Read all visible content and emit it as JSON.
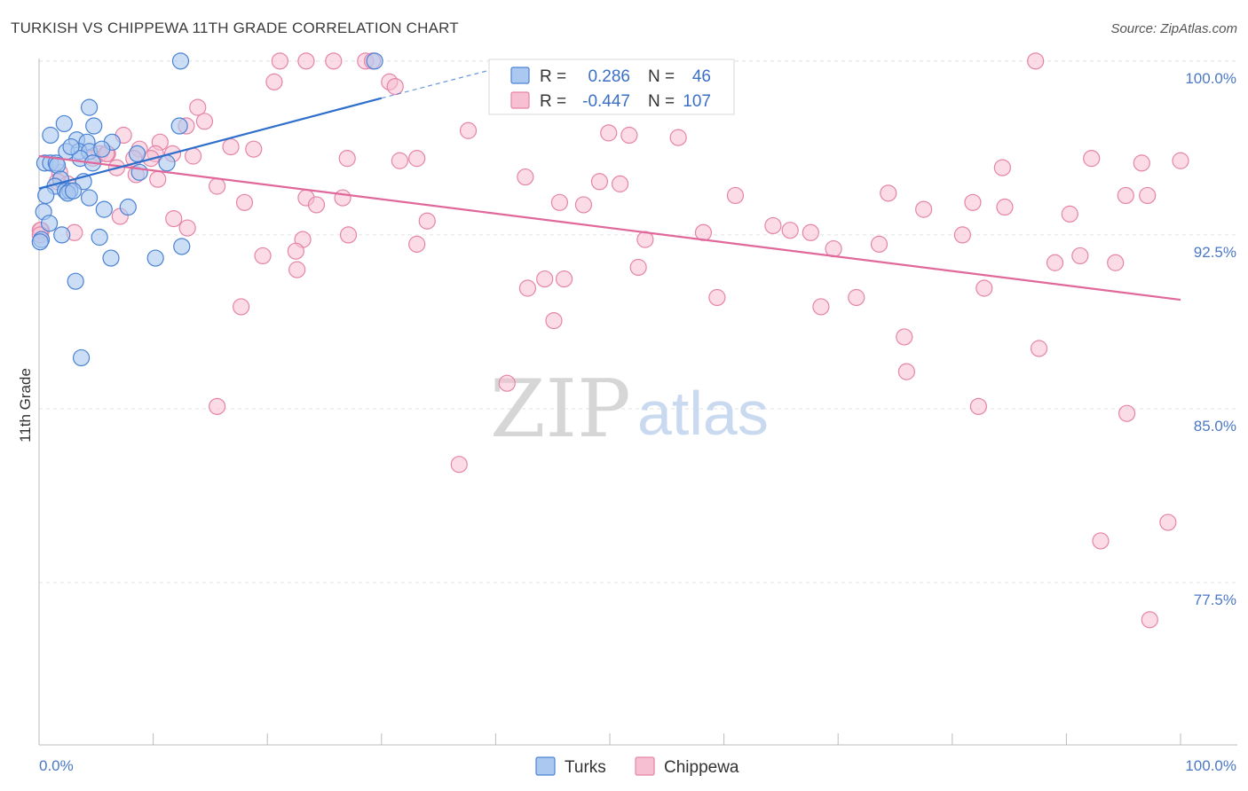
{
  "header": {
    "title": "TURKISH VS CHIPPEWA 11TH GRADE CORRELATION CHART",
    "source": "Source: ZipAtlas.com"
  },
  "watermark": {
    "zip": "ZIP",
    "atlas": "atlas"
  },
  "colors": {
    "turks_fill": "#aac8f0",
    "turks_stroke": "#4a82d4",
    "turks_line": "#2f6fcc",
    "chippewa_fill": "#f7c0d2",
    "chippewa_stroke": "#e584a8",
    "chippewa_line": "#e0689a",
    "grid": "#e2e2e2",
    "tick_text": "#4a78c4"
  },
  "legend": {
    "rows": [
      {
        "r_label": "R =",
        "r_value": "0.286",
        "n_label": "N =",
        "n_value": "46"
      },
      {
        "r_label": "R =",
        "r_value": "-0.447",
        "n_label": "N =",
        "n_value": "107"
      }
    ]
  },
  "bottom_legend": {
    "turks": "Turks",
    "chippewa": "Chippewa"
  },
  "chart_data": {
    "type": "scatter",
    "title": "TURKISH VS CHIPPEWA 11TH GRADE CORRELATION CHART",
    "xlabel": "",
    "ylabel": "11th Grade",
    "xlim": [
      0,
      100
    ],
    "ylim": [
      70.5,
      100.3
    ],
    "x_tick_labels": [
      "0.0%",
      "100.0%"
    ],
    "y_ticks": [
      77.5,
      85.0,
      92.5,
      100.0
    ],
    "y_tick_labels": [
      "77.5%",
      "85.0%",
      "92.5%",
      "100.0%"
    ],
    "grid": true,
    "series": [
      {
        "name": "Turks",
        "r": 0.286,
        "n": 46,
        "trend": {
          "x0": 0,
          "y0": 94.5,
          "x1": 30,
          "y1": 98.4,
          "dash_to_x": 41,
          "dash_to_y": 99.8
        },
        "points": [
          [
            12.4,
            100.0
          ],
          [
            29.4,
            100.0
          ],
          [
            4.4,
            98.0
          ],
          [
            2.2,
            97.3
          ],
          [
            4.8,
            97.2
          ],
          [
            1.0,
            96.8
          ],
          [
            12.3,
            97.2
          ],
          [
            3.3,
            96.6
          ],
          [
            4.2,
            96.5
          ],
          [
            6.4,
            96.5
          ],
          [
            2.4,
            96.1
          ],
          [
            3.5,
            96.1
          ],
          [
            4.4,
            96.1
          ],
          [
            8.6,
            96.0
          ],
          [
            3.6,
            95.8
          ],
          [
            0.5,
            95.6
          ],
          [
            1.0,
            95.6
          ],
          [
            1.5,
            95.6
          ],
          [
            1.6,
            95.5
          ],
          [
            4.7,
            95.6
          ],
          [
            11.2,
            95.6
          ],
          [
            8.8,
            95.2
          ],
          [
            1.9,
            94.9
          ],
          [
            3.9,
            94.8
          ],
          [
            1.4,
            94.6
          ],
          [
            2.3,
            94.4
          ],
          [
            2.7,
            94.4
          ],
          [
            0.6,
            94.2
          ],
          [
            2.5,
            94.3
          ],
          [
            4.4,
            94.1
          ],
          [
            5.7,
            93.6
          ],
          [
            7.8,
            93.7
          ],
          [
            0.4,
            93.5
          ],
          [
            2.0,
            92.5
          ],
          [
            5.3,
            92.4
          ],
          [
            12.5,
            92.0
          ],
          [
            6.3,
            91.5
          ],
          [
            10.2,
            91.5
          ],
          [
            3.2,
            90.5
          ],
          [
            3.7,
            87.2
          ],
          [
            0.2,
            92.3
          ],
          [
            0.1,
            92.2
          ],
          [
            2.8,
            96.3
          ],
          [
            5.5,
            96.2
          ],
          [
            3.0,
            94.4
          ],
          [
            0.9,
            93.0
          ]
        ]
      },
      {
        "name": "Chippewa",
        "r": -0.447,
        "n": 107,
        "trend": {
          "x0": 0,
          "y0": 95.9,
          "x1": 100,
          "y1": 89.7
        },
        "points": [
          [
            21.1,
            100.0
          ],
          [
            23.4,
            100.0
          ],
          [
            25.8,
            100.0
          ],
          [
            28.6,
            100.0
          ],
          [
            29.2,
            100.0
          ],
          [
            87.3,
            100.0
          ],
          [
            20.6,
            99.1
          ],
          [
            30.7,
            99.1
          ],
          [
            31.2,
            98.9
          ],
          [
            13.9,
            98.0
          ],
          [
            14.5,
            97.4
          ],
          [
            12.9,
            97.2
          ],
          [
            37.6,
            97.0
          ],
          [
            49.9,
            96.9
          ],
          [
            7.4,
            96.8
          ],
          [
            51.7,
            96.8
          ],
          [
            56.0,
            96.7
          ],
          [
            10.6,
            96.5
          ],
          [
            16.8,
            96.3
          ],
          [
            18.8,
            96.2
          ],
          [
            8.8,
            96.2
          ],
          [
            10.2,
            96.0
          ],
          [
            11.7,
            96.0
          ],
          [
            5.3,
            96.0
          ],
          [
            6.0,
            96.0
          ],
          [
            13.5,
            95.9
          ],
          [
            4.7,
            95.8
          ],
          [
            8.3,
            95.8
          ],
          [
            9.8,
            95.8
          ],
          [
            27.0,
            95.8
          ],
          [
            31.6,
            95.7
          ],
          [
            33.1,
            95.8
          ],
          [
            92.2,
            95.8
          ],
          [
            96.6,
            95.6
          ],
          [
            100.0,
            95.7
          ],
          [
            1.8,
            95.2
          ],
          [
            84.4,
            95.4
          ],
          [
            8.5,
            95.1
          ],
          [
            10.4,
            94.9
          ],
          [
            42.6,
            95.0
          ],
          [
            49.1,
            94.8
          ],
          [
            50.9,
            94.7
          ],
          [
            15.6,
            94.6
          ],
          [
            2.5,
            94.7
          ],
          [
            1.6,
            94.8
          ],
          [
            74.4,
            94.3
          ],
          [
            23.4,
            94.1
          ],
          [
            26.6,
            94.1
          ],
          [
            95.2,
            94.2
          ],
          [
            97.1,
            94.2
          ],
          [
            18.0,
            93.9
          ],
          [
            24.3,
            93.8
          ],
          [
            45.6,
            93.9
          ],
          [
            47.7,
            93.8
          ],
          [
            81.8,
            93.9
          ],
          [
            77.5,
            93.6
          ],
          [
            84.6,
            93.7
          ],
          [
            90.3,
            93.4
          ],
          [
            11.8,
            93.2
          ],
          [
            7.1,
            93.3
          ],
          [
            34.0,
            93.1
          ],
          [
            64.3,
            92.9
          ],
          [
            65.8,
            92.7
          ],
          [
            0.2,
            92.7
          ],
          [
            13.0,
            92.8
          ],
          [
            3.1,
            92.6
          ],
          [
            23.1,
            92.3
          ],
          [
            27.1,
            92.5
          ],
          [
            53.1,
            92.3
          ],
          [
            58.2,
            92.6
          ],
          [
            67.6,
            92.6
          ],
          [
            80.9,
            92.5
          ],
          [
            69.6,
            91.9
          ],
          [
            73.6,
            92.1
          ],
          [
            33.1,
            92.1
          ],
          [
            19.6,
            91.6
          ],
          [
            22.5,
            91.8
          ],
          [
            91.2,
            91.6
          ],
          [
            94.3,
            91.3
          ],
          [
            22.6,
            91.0
          ],
          [
            52.5,
            91.1
          ],
          [
            89.0,
            91.3
          ],
          [
            44.3,
            90.6
          ],
          [
            46.0,
            90.6
          ],
          [
            42.8,
            90.2
          ],
          [
            82.8,
            90.2
          ],
          [
            59.4,
            89.8
          ],
          [
            68.5,
            89.4
          ],
          [
            71.6,
            89.8
          ],
          [
            17.7,
            89.4
          ],
          [
            45.1,
            88.8
          ],
          [
            75.8,
            88.1
          ],
          [
            87.6,
            87.6
          ],
          [
            82.3,
            85.1
          ],
          [
            76.0,
            86.6
          ],
          [
            15.6,
            85.1
          ],
          [
            41.0,
            86.1
          ],
          [
            95.3,
            84.8
          ],
          [
            36.8,
            82.6
          ],
          [
            93.0,
            79.3
          ],
          [
            98.9,
            80.1
          ],
          [
            97.3,
            75.9
          ],
          [
            0.1,
            92.7
          ],
          [
            0.1,
            92.5
          ],
          [
            5.9,
            96.0
          ],
          [
            6.8,
            95.4
          ],
          [
            61.0,
            94.2
          ]
        ]
      }
    ]
  }
}
